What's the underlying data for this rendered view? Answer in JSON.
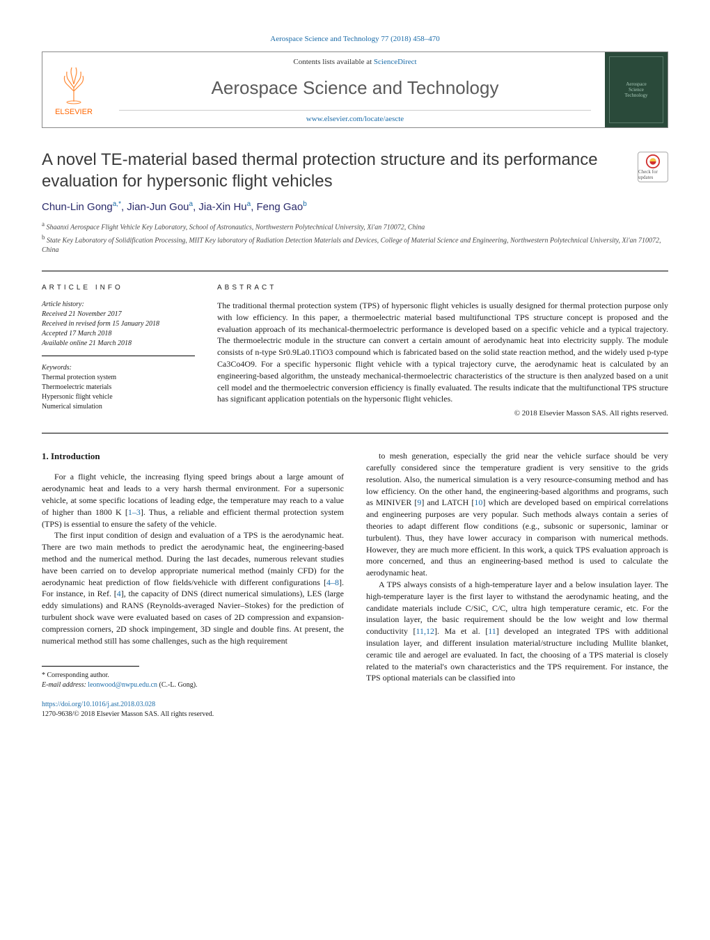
{
  "header": {
    "citation": "Aerospace Science and Technology 77 (2018) 458–470",
    "contents_prefix": "Contents lists available at ",
    "contents_link": "ScienceDirect",
    "journal_name": "Aerospace Science and Technology",
    "journal_url": "www.elsevier.com/locate/aescte",
    "publisher_name": "ELSEVIER",
    "cover_lines": [
      "Aerospace",
      "Science",
      "Technology"
    ]
  },
  "article": {
    "title": "A novel TE-material based thermal protection structure and its performance evaluation for hypersonic flight vehicles",
    "check_badge": "Check for updates",
    "authors_html": "Chun-Lin Gong<sup>a,*</sup>, Jian-Jun Gou<sup>a</sup>, Jia-Xin Hu<sup>a</sup>, Feng Gao<sup>b</sup>",
    "affiliations": [
      {
        "sup": "a",
        "text": "Shaanxi Aerospace Flight Vehicle Key Laboratory, School of Astronautics, Northwestern Polytechnical University, Xi'an 710072, China"
      },
      {
        "sup": "b",
        "text": "State Key Laboratory of Solidification Processing, MIIT Key laboratory of Radiation Detection Materials and Devices, College of Material Science and Engineering, Northwestern Polytechnical University, Xi'an 710072, China"
      }
    ]
  },
  "info": {
    "label": "article info",
    "history_label": "Article history:",
    "history": [
      "Received 21 November 2017",
      "Received in revised form 15 January 2018",
      "Accepted 17 March 2018",
      "Available online 21 March 2018"
    ],
    "keywords_label": "Keywords:",
    "keywords": [
      "Thermal protection system",
      "Thermoelectric materials",
      "Hypersonic flight vehicle",
      "Numerical simulation"
    ]
  },
  "abstract": {
    "label": "abstract",
    "text": "The traditional thermal protection system (TPS) of hypersonic flight vehicles is usually designed for thermal protection purpose only with low efficiency. In this paper, a thermoelectric material based multifunctional TPS structure concept is proposed and the evaluation approach of its mechanical-thermoelectric performance is developed based on a specific vehicle and a typical trajectory. The thermoelectric module in the structure can convert a certain amount of aerodynamic heat into electricity supply. The module consists of n-type Sr0.9La0.1TiO3 compound which is fabricated based on the solid state reaction method, and the widely used p-type Ca3Co4O9. For a specific hypersonic flight vehicle with a typical trajectory curve, the aerodynamic heat is calculated by an engineering-based algorithm, the unsteady mechanical-thermoelectric characteristics of the structure is then analyzed based on a unit cell model and the thermoelectric conversion efficiency is finally evaluated. The results indicate that the multifunctional TPS structure has significant application potentials on the hypersonic flight vehicles.",
    "copyright": "© 2018 Elsevier Masson SAS. All rights reserved."
  },
  "body": {
    "heading": "1. Introduction",
    "left": [
      "For a flight vehicle, the increasing flying speed brings about a large amount of aerodynamic heat and leads to a very harsh thermal environment. For a supersonic vehicle, at some specific locations of leading edge, the temperature may reach to a value of higher than 1800 K [1–3]. Thus, a reliable and efficient thermal protection system (TPS) is essential to ensure the safety of the vehicle.",
      "The first input condition of design and evaluation of a TPS is the aerodynamic heat. There are two main methods to predict the aerodynamic heat, the engineering-based method and the numerical method. During the last decades, numerous relevant studies have been carried on to develop appropriate numerical method (mainly CFD) for the aerodynamic heat prediction of flow fields/vehicle with different configurations [4–8]. For instance, in Ref. [4], the capacity of DNS (direct numerical simulations), LES (large eddy simulations) and RANS (Reynolds-averaged Navier–Stokes) for the prediction of turbulent shock wave were evaluated based on cases of 2D compression and expansion-compression corners, 2D shock impingement, 3D single and double fins. At present, the numerical method still has some challenges, such as the high requirement"
    ],
    "right": [
      "to mesh generation, especially the grid near the vehicle surface should be very carefully considered since the temperature gradient is very sensitive to the grids resolution. Also, the numerical simulation is a very resource-consuming method and has low efficiency. On the other hand, the engineering-based algorithms and programs, such as MINIVER [9] and LATCH [10] which are developed based on empirical correlations and engineering purposes are very popular. Such methods always contain a series of theories to adapt different flow conditions (e.g., subsonic or supersonic, laminar or turbulent). Thus, they have lower accuracy in comparison with numerical methods. However, they are much more efficient. In this work, a quick TPS evaluation approach is more concerned, and thus an engineering-based method is used to calculate the aerodynamic heat.",
      "A TPS always consists of a high-temperature layer and a below insulation layer. The high-temperature layer is the first layer to withstand the aerodynamic heating, and the candidate materials include C/SiC, C/C, ultra high temperature ceramic, etc. For the insulation layer, the basic requirement should be the low weight and low thermal conductivity [11,12]. Ma et al. [11] developed an integrated TPS with additional insulation layer, and different insulation material/structure including Mullite blanket, ceramic tile and aerogel are evaluated. In fact, the choosing of a TPS material is closely related to the material's own characteristics and the TPS requirement. For instance, the TPS optional materials can be classified into"
    ]
  },
  "footnotes": {
    "corr": "* Corresponding author.",
    "email_label": "E-mail address: ",
    "email": "leonwood@nwpu.edu.cn",
    "email_suffix": " (C.-L. Gong)."
  },
  "footer": {
    "doi": "https://doi.org/10.1016/j.ast.2018.03.028",
    "issn_line": "1270-9638/© 2018 Elsevier Masson SAS. All rights reserved."
  },
  "refs": {
    "r1_3": "1–3",
    "r4_8": "4–8",
    "r4": "4",
    "r9": "9",
    "r10": "10",
    "r11_12": "11,12",
    "r11": "11"
  },
  "colors": {
    "link": "#1a6ba8",
    "elsevier_orange": "#ff6600",
    "cover_bg": "#2a4a3a"
  }
}
